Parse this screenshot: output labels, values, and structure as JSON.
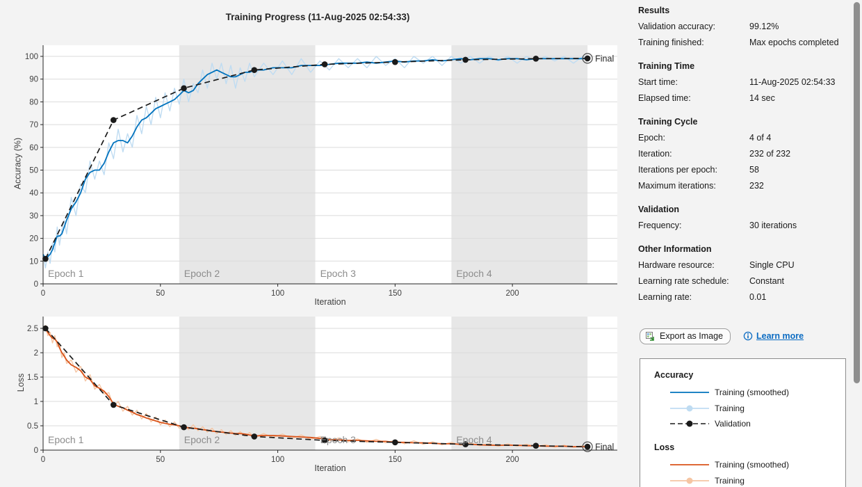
{
  "window": {
    "title": "Training Progress (11-Aug-2025 02:54:33)"
  },
  "colors": {
    "background": "#F3F3F3",
    "plot_bg": "#FFFFFF",
    "epoch_band": "#E7E7E7",
    "gridline": "#DBDBDB",
    "spine": "#262626",
    "tick_label": "#404040",
    "epoch_label": "#8C8C8C",
    "blue": "#0072BD",
    "blue_light": "#BFDCF2",
    "orange": "#D95319",
    "orange_light": "#F5C5A3",
    "validation_black": "#1A1A1A",
    "link_blue": "#0B6BC2",
    "scrollbar_thumb": "#8F8F8F"
  },
  "chart_data": [
    {
      "name": "accuracy",
      "type": "line",
      "xlabel": "Iteration",
      "ylabel": "Accuracy (%)",
      "xlim": [
        0,
        244.7
      ],
      "ylim": [
        0,
        104.9
      ],
      "xticks": [
        0,
        50,
        100,
        150,
        200
      ],
      "yticks": [
        0,
        10,
        20,
        30,
        40,
        50,
        60,
        70,
        80,
        90,
        100
      ],
      "grid": "horizontal",
      "legend_position": "separate-panel",
      "final_label": "Final",
      "epochs": [
        {
          "label": "Epoch 1",
          "start": 0,
          "end": 58,
          "shaded": false
        },
        {
          "label": "Epoch 2",
          "start": 58,
          "end": 116,
          "shaded": true
        },
        {
          "label": "Epoch 3",
          "start": 116,
          "end": 174,
          "shaded": false
        },
        {
          "label": "Epoch 4",
          "start": 174,
          "end": 232,
          "shaded": true
        }
      ],
      "x": [
        0,
        1,
        2,
        3,
        4,
        5,
        6,
        7,
        8,
        9,
        10,
        12,
        14,
        16,
        18,
        20,
        22,
        24,
        26,
        28,
        30,
        32,
        34,
        36,
        38,
        40,
        42,
        44,
        46,
        48,
        50,
        52,
        54,
        56,
        58,
        60,
        62,
        64,
        66,
        68,
        70,
        72,
        74,
        76,
        78,
        80,
        82,
        84,
        86,
        88,
        90,
        94,
        98,
        102,
        106,
        110,
        114,
        118,
        122,
        126,
        130,
        134,
        138,
        142,
        146,
        150,
        154,
        158,
        162,
        166,
        170,
        174,
        178,
        182,
        186,
        190,
        194,
        198,
        202,
        206,
        210,
        214,
        218,
        222,
        226,
        230,
        232
      ],
      "series": [
        {
          "name": "Training",
          "style": "raw",
          "color": "#BFDCF2",
          "values": [
            13,
            7,
            14,
            9,
            18,
            14,
            25,
            17,
            24,
            28,
            22,
            38,
            30,
            44,
            40,
            54,
            46,
            54,
            48,
            62,
            55,
            68,
            58,
            66,
            60,
            74,
            66,
            78,
            70,
            82,
            73,
            84,
            76,
            86,
            79,
            90,
            80,
            88,
            84,
            94,
            86,
            97,
            90,
            97,
            88,
            96,
            86,
            95,
            89,
            97,
            91,
            97,
            92,
            98,
            92,
            99,
            93,
            98,
            94,
            99,
            95,
            99,
            95,
            100,
            96,
            99,
            95,
            100,
            97,
            100,
            96,
            100,
            97,
            100,
            97,
            100,
            98,
            100,
            97,
            100,
            98,
            100,
            98,
            100,
            97,
            100,
            99
          ]
        },
        {
          "name": "Training (smoothed)",
          "style": "solid",
          "color": "#0072BD",
          "values": [
            13,
            11,
            12,
            13,
            15,
            18,
            21,
            21,
            22,
            25,
            28,
            33,
            36,
            40,
            46,
            49,
            50,
            50,
            53,
            58,
            62,
            63,
            63,
            62,
            65,
            69,
            72,
            73,
            75,
            77,
            78,
            79,
            80,
            81,
            83,
            85,
            84,
            85,
            88,
            90,
            92,
            93,
            94,
            93,
            92,
            91,
            91,
            92,
            93,
            93,
            94,
            94,
            95,
            95,
            95,
            96,
            96,
            96,
            96.5,
            97,
            97,
            97,
            97.5,
            97,
            97.5,
            98,
            97.5,
            98,
            98,
            98.5,
            98,
            98.5,
            99,
            98.5,
            99,
            99,
            98.5,
            99,
            99,
            98.5,
            99,
            99,
            99,
            99,
            99,
            99,
            99
          ]
        },
        {
          "name": "Validation",
          "style": "dashed-marker",
          "color": "#1A1A1A",
          "x": [
            1,
            30,
            60,
            90,
            120,
            150,
            180,
            210,
            232
          ],
          "values": [
            11,
            72,
            86,
            94,
            96.5,
            97.5,
            98.5,
            99,
            99.12
          ]
        }
      ]
    },
    {
      "name": "loss",
      "type": "line",
      "xlabel": "Iteration",
      "ylabel": "Loss",
      "xlim": [
        0,
        244.7
      ],
      "ylim": [
        0,
        2.743
      ],
      "xticks": [
        0,
        50,
        100,
        150,
        200
      ],
      "yticks": [
        0,
        0.5,
        1,
        1.5,
        2,
        2.5
      ],
      "grid": "horizontal",
      "legend_position": "separate-panel",
      "final_label": "Final",
      "epochs": [
        {
          "label": "Epoch 1",
          "start": 0,
          "end": 58,
          "shaded": false
        },
        {
          "label": "Epoch 2",
          "start": 58,
          "end": 116,
          "shaded": true
        },
        {
          "label": "Epoch 3",
          "start": 116,
          "end": 174,
          "shaded": false
        },
        {
          "label": "Epoch 4",
          "start": 174,
          "end": 232,
          "shaded": true
        }
      ],
      "x": [
        0,
        1,
        2,
        3,
        4,
        5,
        6,
        7,
        8,
        9,
        10,
        12,
        14,
        16,
        18,
        20,
        22,
        24,
        26,
        28,
        30,
        32,
        34,
        36,
        38,
        40,
        42,
        44,
        46,
        48,
        50,
        52,
        54,
        56,
        58,
        60,
        62,
        64,
        66,
        68,
        70,
        72,
        74,
        76,
        78,
        80,
        82,
        84,
        86,
        88,
        90,
        94,
        98,
        102,
        106,
        110,
        114,
        118,
        122,
        126,
        130,
        134,
        138,
        142,
        146,
        150,
        154,
        158,
        162,
        166,
        170,
        174,
        178,
        182,
        186,
        190,
        194,
        198,
        202,
        206,
        210,
        214,
        218,
        222,
        226,
        230,
        232
      ],
      "series": [
        {
          "name": "Training",
          "style": "raw",
          "color": "#F5C5A3",
          "values": [
            2.5,
            2.56,
            2.35,
            2.42,
            2.2,
            2.35,
            2.12,
            2.2,
            1.9,
            2.0,
            1.78,
            1.85,
            1.6,
            1.72,
            1.42,
            1.55,
            1.25,
            1.35,
            1.15,
            1.18,
            0.9,
            1.0,
            0.8,
            0.9,
            0.72,
            0.82,
            0.64,
            0.75,
            0.58,
            0.68,
            0.52,
            0.62,
            0.48,
            0.58,
            0.45,
            0.52,
            0.42,
            0.52,
            0.4,
            0.48,
            0.37,
            0.45,
            0.34,
            0.42,
            0.32,
            0.4,
            0.3,
            0.38,
            0.29,
            0.36,
            0.26,
            0.34,
            0.26,
            0.33,
            0.24,
            0.31,
            0.22,
            0.28,
            0.19,
            0.25,
            0.17,
            0.23,
            0.16,
            0.22,
            0.15,
            0.2,
            0.13,
            0.19,
            0.12,
            0.17,
            0.11,
            0.16,
            0.1,
            0.15,
            0.09,
            0.13,
            0.08,
            0.13,
            0.08,
            0.12,
            0.07,
            0.11,
            0.06,
            0.1,
            0.06,
            0.09,
            0.07
          ]
        },
        {
          "name": "Training (smoothed)",
          "style": "solid",
          "color": "#D95319",
          "values": [
            2.5,
            2.48,
            2.42,
            2.35,
            2.3,
            2.28,
            2.22,
            2.1,
            2.0,
            1.93,
            1.85,
            1.75,
            1.7,
            1.63,
            1.5,
            1.45,
            1.32,
            1.27,
            1.21,
            1.1,
            0.95,
            0.9,
            0.87,
            0.82,
            0.78,
            0.73,
            0.7,
            0.66,
            0.63,
            0.6,
            0.57,
            0.55,
            0.53,
            0.52,
            0.5,
            0.47,
            0.46,
            0.45,
            0.44,
            0.42,
            0.41,
            0.39,
            0.38,
            0.37,
            0.36,
            0.35,
            0.34,
            0.34,
            0.33,
            0.31,
            0.29,
            0.3,
            0.3,
            0.29,
            0.28,
            0.27,
            0.26,
            0.24,
            0.22,
            0.21,
            0.2,
            0.2,
            0.19,
            0.18,
            0.18,
            0.16,
            0.16,
            0.15,
            0.15,
            0.14,
            0.13,
            0.13,
            0.12,
            0.12,
            0.11,
            0.1,
            0.1,
            0.1,
            0.1,
            0.09,
            0.09,
            0.08,
            0.08,
            0.08,
            0.07,
            0.07,
            0.07
          ]
        },
        {
          "name": "Validation",
          "style": "dashed-marker",
          "color": "#1A1A1A",
          "x": [
            1,
            30,
            60,
            90,
            120,
            150,
            180,
            210,
            232
          ],
          "values": [
            2.5,
            0.93,
            0.47,
            0.28,
            0.2,
            0.16,
            0.12,
            0.09,
            0.07
          ]
        }
      ]
    }
  ],
  "panel": {
    "sections": [
      {
        "title": "Results",
        "rows": [
          [
            "Validation accuracy:",
            "99.12%"
          ],
          [
            "Training finished:",
            "Max epochs completed"
          ]
        ]
      },
      {
        "title": "Training Time",
        "rows": [
          [
            "Start time:",
            "11-Aug-2025 02:54:33"
          ],
          [
            "Elapsed time:",
            "14 sec"
          ]
        ]
      },
      {
        "title": "Training Cycle",
        "rows": [
          [
            "Epoch:",
            "4 of 4"
          ],
          [
            "Iteration:",
            "232 of 232"
          ],
          [
            "Iterations per epoch:",
            "58"
          ],
          [
            "Maximum iterations:",
            "232"
          ]
        ]
      },
      {
        "title": "Validation",
        "rows": [
          [
            "Frequency:",
            "30 iterations"
          ]
        ]
      },
      {
        "title": "Other Information",
        "rows": [
          [
            "Hardware resource:",
            "Single CPU"
          ],
          [
            "Learning rate schedule:",
            "Constant"
          ],
          [
            "Learning rate:",
            "0.01"
          ]
        ]
      }
    ]
  },
  "actions": {
    "export_label": "Export as Image",
    "learn_more_label": "Learn more"
  },
  "legend": {
    "accuracy_title": "Accuracy",
    "loss_title": "Loss",
    "accuracy_items": [
      {
        "label": "Training (smoothed)"
      },
      {
        "label": "Training"
      },
      {
        "label": "Validation"
      }
    ],
    "loss_items": [
      {
        "label": "Training (smoothed)"
      },
      {
        "label": "Training"
      }
    ]
  }
}
